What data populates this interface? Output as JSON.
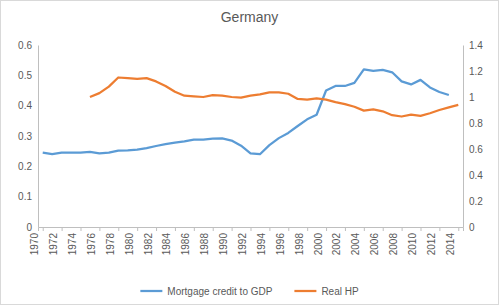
{
  "chart_data": {
    "type": "line",
    "title": "Germany",
    "x": [
      1970,
      1971,
      1972,
      1973,
      1974,
      1975,
      1976,
      1977,
      1978,
      1979,
      1980,
      1981,
      1982,
      1983,
      1984,
      1985,
      1986,
      1987,
      1988,
      1989,
      1990,
      1991,
      1992,
      1993,
      1994,
      1995,
      1996,
      1997,
      1998,
      1999,
      2000,
      2001,
      2002,
      2003,
      2004,
      2005,
      2006,
      2007,
      2008,
      2009,
      2010,
      2011,
      2012,
      2013,
      2014
    ],
    "xlim": [
      1969.5,
      2014.5
    ],
    "xticks": [
      1970,
      1972,
      1974,
      1976,
      1978,
      1980,
      1982,
      1984,
      1986,
      1988,
      1990,
      1992,
      1994,
      1996,
      1998,
      2000,
      2002,
      2004,
      2006,
      2008,
      2010,
      2012,
      2014
    ],
    "ylim": [
      0,
      0.6
    ],
    "yticks": [
      0,
      0.1,
      0.2,
      0.3,
      0.4,
      0.5,
      0.6
    ],
    "y2lim": [
      0,
      1.4
    ],
    "y2ticks": [
      0,
      0.2,
      0.4,
      0.6,
      0.8,
      1,
      1.2,
      1.4
    ],
    "grid": false,
    "legend": "bottom",
    "series": [
      {
        "name": "Mortgage credit to GDP",
        "color": "#5b9bd5",
        "values": [
          0.245,
          0.24,
          0.245,
          0.245,
          0.245,
          0.248,
          0.243,
          0.245,
          0.252,
          0.253,
          0.255,
          0.26,
          0.267,
          0.273,
          0.278,
          0.282,
          0.288,
          0.288,
          0.291,
          0.292,
          0.285,
          0.268,
          0.243,
          0.24,
          0.27,
          0.293,
          0.31,
          0.333,
          0.355,
          0.37,
          0.45,
          0.465,
          0.465,
          0.475,
          0.52,
          0.515,
          0.518,
          0.51,
          0.48,
          0.47,
          0.485,
          0.46,
          0.445,
          0.435,
          null
        ]
      },
      {
        "name": "Real HP",
        "color": "#ed7d31",
        "axis": "y2",
        "values": [
          null,
          null,
          null,
          null,
          null,
          1.0,
          1.03,
          1.08,
          1.15,
          1.145,
          1.14,
          1.145,
          1.12,
          1.085,
          1.04,
          1.01,
          1.005,
          1.0,
          1.015,
          1.01,
          1.0,
          0.995,
          1.01,
          1.02,
          1.035,
          1.035,
          1.025,
          0.985,
          0.98,
          0.99,
          0.98,
          0.96,
          0.945,
          0.925,
          0.895,
          0.905,
          0.89,
          0.86,
          0.85,
          0.865,
          0.855,
          0.875,
          0.9,
          0.92,
          0.94
        ]
      }
    ]
  }
}
